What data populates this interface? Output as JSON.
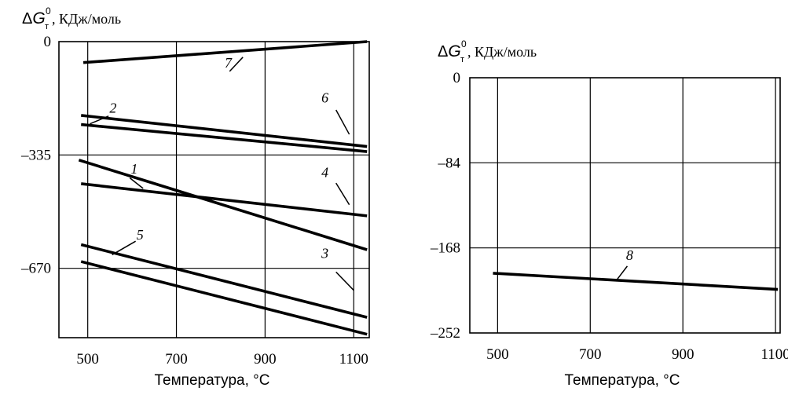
{
  "chart_data": [
    {
      "type": "line",
      "ylabel_symbol": "ΔG",
      "ylabel_sub": "т",
      "ylabel_sup": "0",
      "ylabel_unit": ", КДж/моль",
      "xlabel": "Температура, °C",
      "xlim": [
        435,
        1135
      ],
      "ylim": [
        -875,
        0
      ],
      "xticks": [
        500,
        700,
        900,
        1100
      ],
      "yticks": [
        {
          "value": 0,
          "label": "0"
        },
        {
          "value": -335,
          "label": "–335"
        },
        {
          "value": -670,
          "label": "–670"
        }
      ],
      "grid": true,
      "series": [
        {
          "id": "1",
          "label": "1",
          "x": [
            480,
            1130
          ],
          "y": [
            -350,
            -615
          ],
          "label_at": [
            605,
            -390
          ],
          "leader_at": [
            [
              595,
              -403
            ],
            [
              625,
              -434
            ]
          ]
        },
        {
          "id": "2",
          "label": "2",
          "x": [
            485,
            1130
          ],
          "y": [
            -218,
            -310
          ],
          "label_at": [
            557,
            -210
          ],
          "leader_at": [
            [
              547,
              -220
            ],
            [
              505,
              -243
            ]
          ]
        },
        {
          "id": "3",
          "label": "3",
          "x": [
            485,
            1130
          ],
          "y": [
            -650,
            -865
          ],
          "label_at": [
            1035,
            -640
          ],
          "leader_at": [
            [
              1060,
              -681
            ],
            [
              1100,
              -735
            ]
          ]
        },
        {
          "id": "4",
          "label": "4",
          "x": [
            485,
            1130
          ],
          "y": [
            -420,
            -515
          ],
          "label_at": [
            1035,
            -400
          ],
          "leader_at": [
            [
              1060,
              -418
            ],
            [
              1090,
              -482
            ]
          ]
        },
        {
          "id": "5",
          "label": "5",
          "x": [
            485,
            1130
          ],
          "y": [
            -600,
            -815
          ],
          "label_at": [
            618,
            -585
          ],
          "leader_at": [
            [
              608,
              -590
            ],
            [
              555,
              -630
            ]
          ]
        },
        {
          "id": "6",
          "label": "6",
          "x": [
            485,
            1130
          ],
          "y": [
            -245,
            -325
          ],
          "label_at": [
            1035,
            -180
          ],
          "leader_at": [
            [
              1060,
              -202
            ],
            [
              1090,
              -274
            ]
          ]
        },
        {
          "id": "7",
          "label": "7",
          "x": [
            490,
            1130
          ],
          "y": [
            -62,
            0
          ],
          "label_at": [
            817,
            -77
          ],
          "leader_at": [
            [
              820,
              -88
            ],
            [
              850,
              -46
            ]
          ]
        }
      ]
    },
    {
      "type": "line",
      "ylabel_symbol": "ΔG",
      "ylabel_sub": "т",
      "ylabel_sup": "0",
      "ylabel_unit": ", КДж/моль",
      "xlabel": "Температура, °C",
      "xlim": [
        440,
        1110
      ],
      "ylim": [
        -252,
        0
      ],
      "xticks": [
        500,
        700,
        900,
        1100
      ],
      "yticks": [
        {
          "value": 0,
          "label": "0"
        },
        {
          "value": -84,
          "label": "–84"
        },
        {
          "value": -168,
          "label": "–168"
        },
        {
          "value": -252,
          "label": "–252"
        }
      ],
      "grid": true,
      "series": [
        {
          "id": "8",
          "label": "8",
          "x": [
            490,
            1105
          ],
          "y": [
            -193,
            -209
          ],
          "label_at": [
            785,
            -180
          ],
          "leader_at": [
            [
              780,
              -186
            ],
            [
              755,
              -201
            ]
          ]
        }
      ]
    }
  ]
}
